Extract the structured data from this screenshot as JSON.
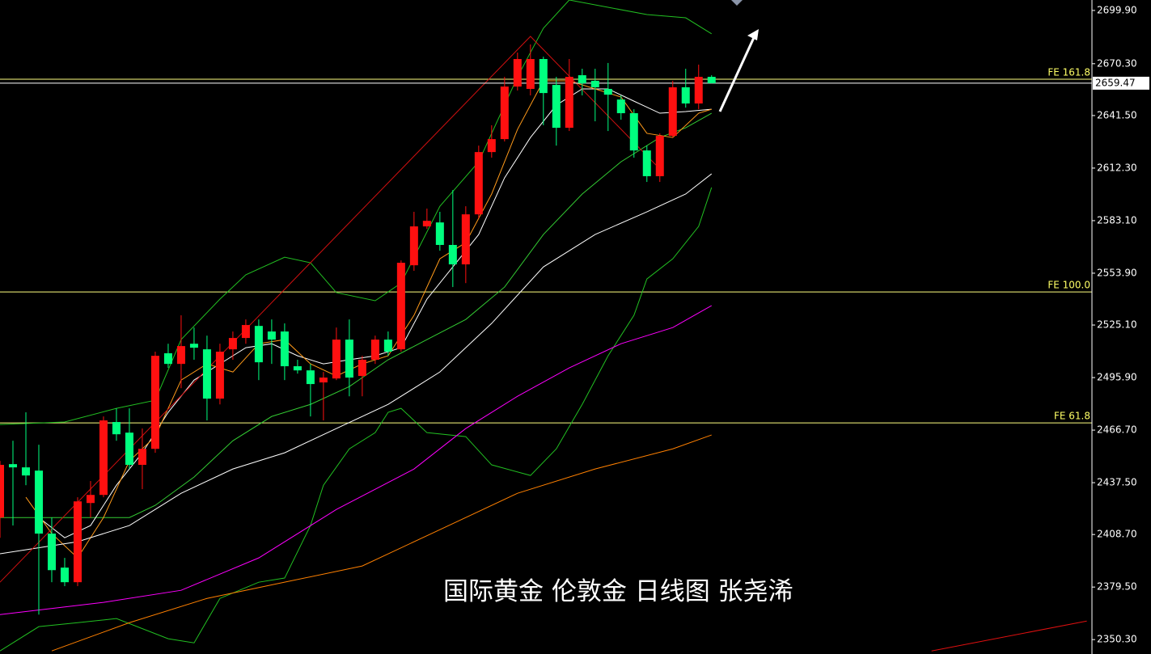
{
  "chart_data": {
    "type": "candlestick",
    "ylim": [
      2342.3,
      2705.7
    ],
    "xlim": [
      0,
      84.4
    ],
    "yticks": [
      {
        "value": 2699.9,
        "label": "2699.90"
      },
      {
        "value": 2670.3,
        "label": "2670.30"
      },
      {
        "value": 2641.5,
        "label": "2641.50"
      },
      {
        "value": 2612.3,
        "label": "2612.30"
      },
      {
        "value": 2583.1,
        "label": "2583.10"
      },
      {
        "value": 2553.9,
        "label": "2553.90"
      },
      {
        "value": 2525.1,
        "label": "2525.10"
      },
      {
        "value": 2495.9,
        "label": "2495.90"
      },
      {
        "value": 2466.7,
        "label": "2466.70"
      },
      {
        "value": 2437.5,
        "label": "2437.50"
      },
      {
        "value": 2408.7,
        "label": "2408.70"
      },
      {
        "value": 2379.5,
        "label": "2379.50"
      },
      {
        "value": 2350.3,
        "label": "2350.30"
      }
    ],
    "up_color": "#ff1010",
    "down_color": "#00ff7f",
    "candles": {
      "open": [
        2418.1,
        2447.8,
        2446.0,
        2444.2,
        2409.2,
        2390.3,
        2382.2,
        2426.2,
        2430.7,
        2471.2,
        2465.3,
        2447.4,
        2456.3,
        2509.4,
        2503.5,
        2514.7,
        2511.6,
        2484.2,
        2511.6,
        2517.9,
        2524.6,
        2521.5,
        2521.5,
        2502.2,
        2499.9,
        2493.2,
        2495.4,
        2517.0,
        2496.8,
        2505.8,
        2517.0,
        2511.6,
        2558.3,
        2579.9,
        2582.1,
        2569.6,
        2558.8,
        2586.6,
        2621.2,
        2628.4,
        2657.6,
        2656.3,
        2672.9,
        2658.5,
        2634.7,
        2663.9,
        2660.8,
        2656.3,
        2650.4,
        2642.8,
        2622.1,
        2607.8,
        2630.2,
        2657.2,
        2648.2,
        2663.0
      ],
      "high": [
        2449.6,
        2460.8,
        2476.6,
        2458.6,
        2418.1,
        2395.7,
        2429.4,
        2438.4,
        2474.3,
        2478.8,
        2478.8,
        2467.6,
        2510.3,
        2514.7,
        2530.5,
        2523.7,
        2519.2,
        2514.7,
        2521.5,
        2528.2,
        2528.2,
        2528.2,
        2526.0,
        2505.8,
        2503.5,
        2499.0,
        2523.7,
        2528.2,
        2508.0,
        2519.2,
        2521.5,
        2561.0,
        2588.0,
        2589.8,
        2588.0,
        2600.1,
        2591.1,
        2624.8,
        2636.1,
        2663.0,
        2676.5,
        2681.0,
        2674.2,
        2663.0,
        2672.9,
        2667.5,
        2667.5,
        2670.7,
        2652.7,
        2645.0,
        2624.8,
        2631.6,
        2660.8,
        2667.5,
        2669.8,
        2663.9
      ],
      "low": [
        2406.9,
        2413.7,
        2436.1,
        2364.2,
        2382.2,
        2380.0,
        2380.0,
        2418.1,
        2429.4,
        2460.8,
        2445.1,
        2433.9,
        2454.1,
        2501.3,
        2490.0,
        2505.8,
        2472.1,
        2481.0,
        2505.8,
        2514.7,
        2494.5,
        2503.5,
        2494.5,
        2498.1,
        2474.3,
        2472.1,
        2494.5,
        2485.5,
        2485.5,
        2503.5,
        2508.0,
        2510.3,
        2555.2,
        2578.5,
        2566.4,
        2546.2,
        2548.4,
        2584.4,
        2618.1,
        2627.1,
        2655.4,
        2652.7,
        2636.1,
        2624.8,
        2632.9,
        2652.7,
        2638.3,
        2632.9,
        2639.2,
        2618.1,
        2604.6,
        2604.6,
        2629.3,
        2645.9,
        2645.0,
        2659.4
      ],
      "close": [
        2447.4,
        2446.0,
        2441.5,
        2409.2,
        2388.9,
        2382.2,
        2427.1,
        2430.7,
        2472.1,
        2464.4,
        2447.4,
        2456.3,
        2508.0,
        2503.5,
        2513.4,
        2512.5,
        2484.2,
        2510.3,
        2517.9,
        2525.1,
        2504.4,
        2517.0,
        2502.2,
        2499.9,
        2492.3,
        2495.9,
        2517.0,
        2495.9,
        2505.8,
        2517.0,
        2510.3,
        2559.7,
        2579.9,
        2583.0,
        2569.6,
        2558.8,
        2586.6,
        2621.2,
        2628.4,
        2657.6,
        2672.9,
        2672.9,
        2654.0,
        2634.7,
        2663.0,
        2659.4,
        2657.2,
        2653.1,
        2642.8,
        2622.1,
        2607.8,
        2630.2,
        2657.2,
        2648.2,
        2663.0,
        2659.47
      ]
    },
    "overlays": [
      {
        "color": "#22c022",
        "x": [
          0,
          5,
          9,
          12,
          14,
          17,
          19,
          22,
          24,
          26,
          29,
          31,
          34,
          37,
          40,
          42,
          44,
          50,
          53,
          55
        ],
        "values": [
          2469.8,
          2471.2,
          2478.8,
          2483.3,
          2517.0,
          2539.5,
          2553.0,
          2562.8,
          2559.7,
          2543.1,
          2538.6,
          2548.4,
          2591.1,
          2615.8,
          2663.0,
          2690.0,
          2705.7,
          2697.6,
          2695.8,
          2686.9
        ]
      },
      {
        "color": "#22c022",
        "x": [
          0,
          3,
          6,
          9,
          13,
          15,
          17,
          20,
          22,
          24,
          25,
          27,
          29,
          30,
          31,
          33,
          36,
          38,
          41,
          43,
          45,
          47,
          49,
          50,
          52,
          54,
          55
        ],
        "values": [
          2344.0,
          2357.5,
          2359.7,
          2362.0,
          2350.8,
          2348.5,
          2373.2,
          2382.2,
          2384.5,
          2413.7,
          2436.1,
          2456.3,
          2465.3,
          2476.6,
          2478.8,
          2465.3,
          2463.1,
          2447.4,
          2441.5,
          2456.3,
          2481.0,
          2508.0,
          2530.5,
          2550.7,
          2561.9,
          2579.9,
          2601.5
        ]
      },
      {
        "color": "#33cc33",
        "x": [
          0,
          5,
          10,
          12,
          15,
          18,
          21,
          24,
          27,
          30,
          33,
          36,
          39,
          42,
          45,
          48,
          51,
          53,
          55
        ],
        "values": [
          2418.1,
          2418.1,
          2418.1,
          2424.9,
          2440.6,
          2460.8,
          2474.3,
          2481.0,
          2490.9,
          2505.8,
          2517.0,
          2528.2,
          2546.2,
          2575.4,
          2597.9,
          2615.8,
          2629.3,
          2634.7,
          2642.8
        ]
      },
      {
        "color": "#ffffff",
        "x": [
          3,
          5,
          7,
          9,
          11,
          13,
          15,
          17,
          19,
          21,
          23,
          25,
          27,
          29,
          31,
          33,
          35,
          37,
          39,
          41,
          43,
          45,
          47,
          49,
          51,
          53,
          55
        ],
        "values": [
          2418.1,
          2406.9,
          2413.7,
          2436.1,
          2454.1,
          2476.6,
          2494.5,
          2503.5,
          2512.5,
          2514.7,
          2508.0,
          2503.5,
          2505.8,
          2508.0,
          2512.5,
          2539.5,
          2557.4,
          2575.4,
          2606.9,
          2629.3,
          2647.3,
          2656.3,
          2656.3,
          2649.5,
          2642.8,
          2643.7,
          2645.0
        ]
      },
      {
        "color": "#ff9a1a",
        "x": [
          2,
          4,
          6,
          8,
          10,
          12,
          14,
          16,
          18,
          20,
          22,
          24,
          26,
          28,
          30,
          32,
          34,
          36,
          38,
          40,
          42,
          44,
          46,
          48,
          50,
          52,
          54,
          55
        ],
        "values": [
          2429.4,
          2409.2,
          2395.7,
          2418.1,
          2449.6,
          2463.1,
          2494.5,
          2503.5,
          2499.0,
          2514.7,
          2517.0,
          2503.5,
          2496.8,
          2503.5,
          2508.0,
          2530.5,
          2561.9,
          2570.9,
          2597.9,
          2633.8,
          2660.8,
          2660.8,
          2656.3,
          2651.8,
          2631.6,
          2629.3,
          2642.8,
          2645.0
        ]
      },
      {
        "color": "#ffffff",
        "x": [
          0,
          6,
          10,
          14,
          18,
          22,
          26,
          30,
          34,
          38,
          42,
          46,
          50,
          53,
          55
        ],
        "values": [
          2398.0,
          2404.7,
          2413.7,
          2431.6,
          2445.1,
          2454.1,
          2467.6,
          2481.0,
          2499.0,
          2526.0,
          2557.4,
          2575.4,
          2588.0,
          2597.9,
          2609.1
        ]
      },
      {
        "color": "#ff00ff",
        "x": [
          0,
          8,
          14,
          20,
          26,
          32,
          36,
          40,
          44,
          48,
          52,
          55
        ],
        "values": [
          2364.2,
          2371.0,
          2377.7,
          2395.7,
          2422.6,
          2445.1,
          2467.6,
          2485.5,
          2501.3,
          2514.7,
          2523.7,
          2535.9
        ]
      },
      {
        "color": "#ff8000",
        "x": [
          4,
          10,
          16,
          22,
          28,
          34,
          40,
          46,
          52,
          55
        ],
        "values": [
          2344.0,
          2359.7,
          2373.2,
          2382.2,
          2391.2,
          2411.4,
          2431.6,
          2445.1,
          2456.3,
          2464.0
        ]
      },
      {
        "color": "#e01010",
        "x": [
          72,
          84
        ],
        "values": [
          2344.0,
          2360.6
        ]
      },
      {
        "color": "#d01010",
        "x": [
          0,
          41,
          51
        ],
        "values": [
          2382.2,
          2685.5,
          2611.8
        ]
      }
    ],
    "level_color": "#ffff80",
    "levels": [
      {
        "label": "FE 161.8",
        "value": 2661.7
      },
      {
        "label": "FE 100.0",
        "value": 2543.5
      },
      {
        "label": "FE 61.8",
        "value": 2470.7
      }
    ],
    "last_price": 2659.47,
    "watermark": "国际黄金 伦敦金  日线图 张尧浠"
  }
}
